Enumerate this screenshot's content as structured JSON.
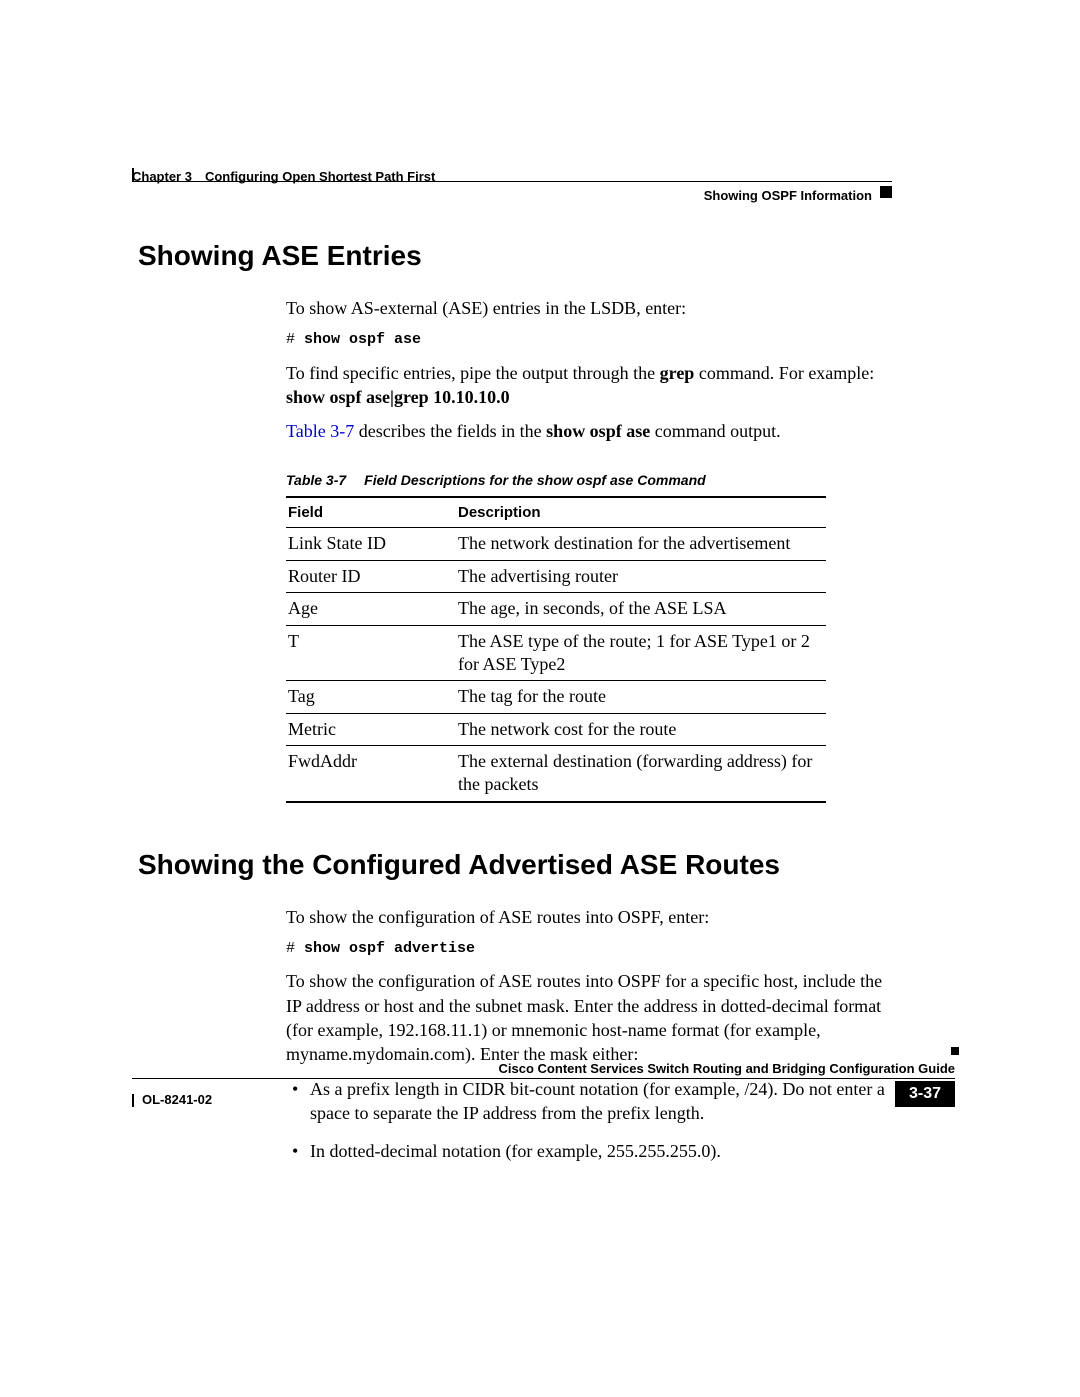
{
  "header": {
    "chapter": "Chapter 3 Configuring Open Shortest Path First",
    "section": "Showing OSPF Information"
  },
  "section1": {
    "heading": "Showing ASE Entries",
    "p1_a": "To show AS-external (ASE) entries in the LSDB, enter:",
    "code1_prefix": "# ",
    "code1_cmd": "show ospf ase",
    "p2_a": "To find specific entries, pipe the output through the ",
    "p2_grep": "grep",
    "p2_b": " command. For example: ",
    "p2_example": "show ospf ase|grep 10.10.10.0",
    "p3_link": "Table 3-7",
    "p3_a": " describes the fields in the ",
    "p3_cmd": "show ospf ase",
    "p3_b": " command output.",
    "table": {
      "caption_num": "Table 3-7",
      "caption_text": "Field Descriptions for the show ospf ase Command",
      "col1": "Field",
      "col2": "Description",
      "rows": [
        {
          "f": "Link State ID",
          "d": "The network destination for the advertisement"
        },
        {
          "f": "Router ID",
          "d": "The advertising router"
        },
        {
          "f": "Age",
          "d": "The age, in seconds, of the ASE LSA"
        },
        {
          "f": "T",
          "d": "The ASE type of the route; 1 for ASE Type1 or 2 for ASE Type2"
        },
        {
          "f": "Tag",
          "d": "The tag for the route"
        },
        {
          "f": "Metric",
          "d": "The network cost for the route"
        },
        {
          "f": "FwdAddr",
          "d": "The external destination (forwarding address) for the packets"
        }
      ]
    }
  },
  "section2": {
    "heading": "Showing the Configured Advertised ASE Routes",
    "p1": "To show the configuration of ASE routes into OSPF, enter:",
    "code_prefix": "# ",
    "code_cmd": "show ospf advertise",
    "p2": "To show the configuration of ASE routes into OSPF for a specific host, include the IP address or host and the subnet mask. Enter the address in dotted-decimal format (for example, 192.168.11.1) or mnemonic host-name format (for example, myname.mydomain.com). Enter the mask either:",
    "bullets": [
      "As a prefix length in CIDR bit-count notation (for example, /24). Do not enter a space to separate the IP address from the prefix length.",
      "In dotted-decimal notation (for example, 255.255.255.0)."
    ]
  },
  "footer": {
    "guide": "Cisco Content Services Switch Routing and Bridging Configuration Guide",
    "doc": "OL-8241-02",
    "page": "3-37"
  }
}
